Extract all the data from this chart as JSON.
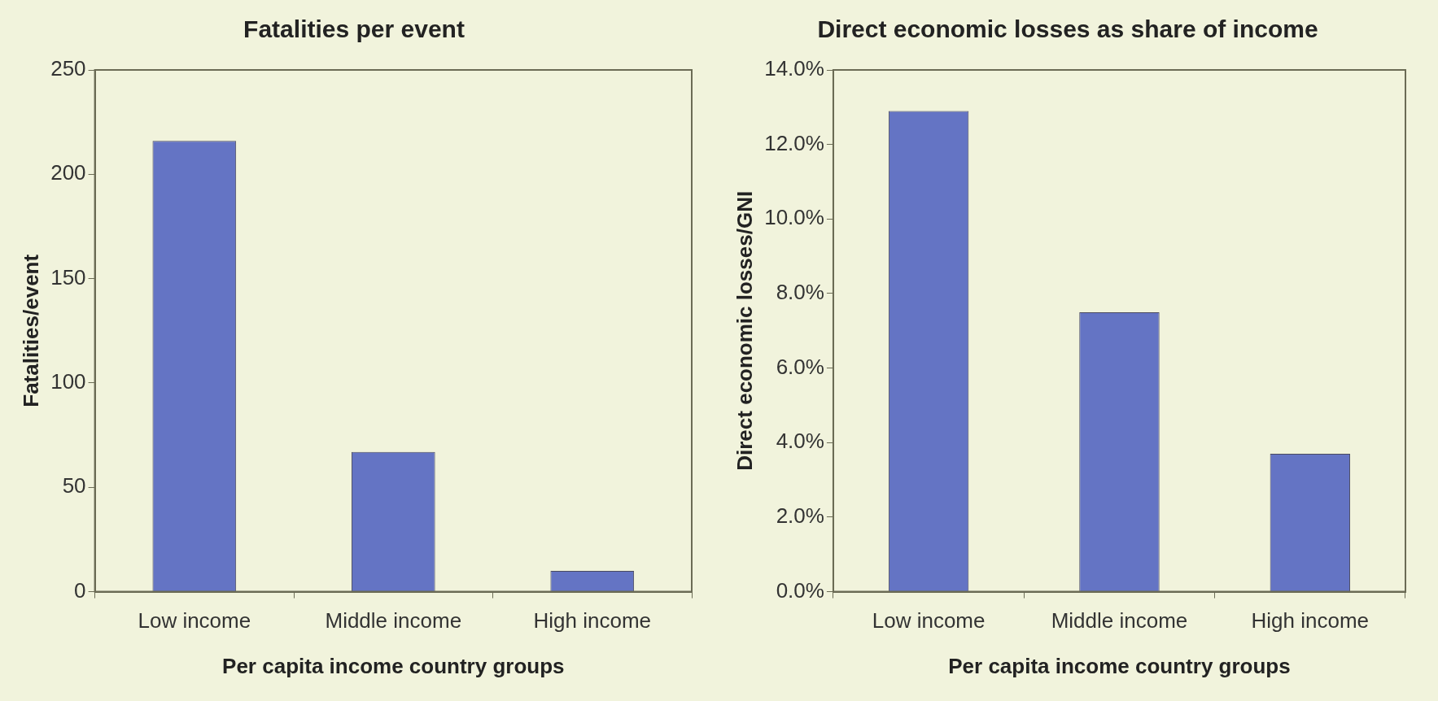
{
  "chart_data": [
    {
      "type": "bar",
      "title": "Fatalities per event",
      "xlabel": "Per capita income country groups",
      "ylabel": "Fatalities/event",
      "categories": [
        "Low income",
        "Middle income",
        "High income"
      ],
      "values": [
        216,
        67,
        10
      ],
      "color": "#6474c4",
      "ylim": [
        0,
        250
      ],
      "yticks": [
        0,
        50,
        100,
        150,
        200,
        250
      ],
      "grid": false,
      "legend": false
    },
    {
      "type": "bar",
      "title": "Direct economic losses as share of income",
      "xlabel": "Per capita income country groups",
      "ylabel": "Direct economic losses/GNI",
      "categories": [
        "Low income",
        "Middle income",
        "High income"
      ],
      "values": [
        12.9,
        7.5,
        3.7
      ],
      "color": "#6474c4",
      "ylim": [
        0,
        14
      ],
      "yticks": [
        {
          "value": 0,
          "label": "0.0%"
        },
        {
          "value": 2,
          "label": "2.0%"
        },
        {
          "value": 4,
          "label": "4.0%"
        },
        {
          "value": 6,
          "label": "6.0%"
        },
        {
          "value": 8,
          "label": "8.0%"
        },
        {
          "value": 10,
          "label": "10.0%"
        },
        {
          "value": 12,
          "label": "12.0%"
        },
        {
          "value": 14,
          "label": "14.0%"
        }
      ],
      "grid": false,
      "legend": false
    }
  ]
}
